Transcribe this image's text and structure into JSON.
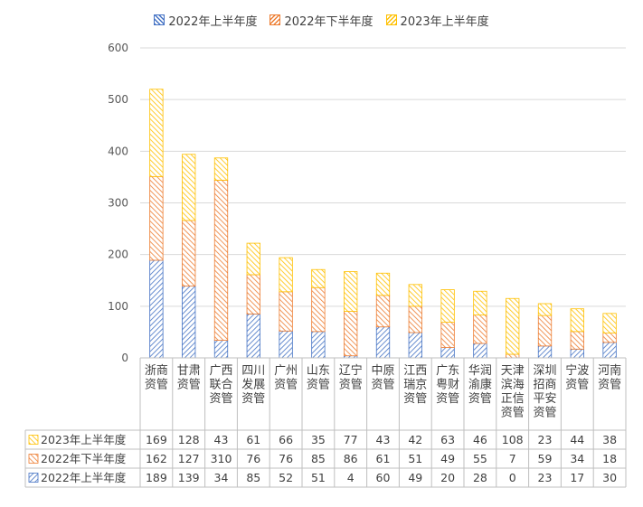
{
  "chart_data": {
    "type": "bar",
    "stacked": true,
    "title": "",
    "xlabel": "",
    "ylabel": "",
    "ylim": [
      0,
      600
    ],
    "yticks": [
      0,
      100,
      200,
      300,
      400,
      500,
      600
    ],
    "grid": true,
    "legend_position": "top",
    "categories": [
      "浙商资管",
      "甘肃资管",
      "广西联合资管",
      "四川发展资管",
      "广州资管",
      "山东资管",
      "辽宁资管",
      "中原资管",
      "江西瑞京资管",
      "广东粤财资管",
      "华润渝康资管",
      "天津滨海正信资管",
      "深圳招商平安资管",
      "宁波资管",
      "河南资管"
    ],
    "category_lines": [
      [
        "浙商",
        "资管"
      ],
      [
        "甘肃",
        "资管"
      ],
      [
        "广西",
        "联合",
        "资管"
      ],
      [
        "四川",
        "发展",
        "资管"
      ],
      [
        "广州",
        "资管"
      ],
      [
        "山东",
        "资管"
      ],
      [
        "辽宁",
        "资管"
      ],
      [
        "中原",
        "资管"
      ],
      [
        "江西",
        "瑞京",
        "资管"
      ],
      [
        "广东",
        "粤财",
        "资管"
      ],
      [
        "华润",
        "渝康",
        "资管"
      ],
      [
        "天津",
        "滨海",
        "正信",
        "资管"
      ],
      [
        "深圳",
        "招商",
        "平安",
        "资管"
      ],
      [
        "宁波",
        "资管"
      ],
      [
        "河南",
        "资管"
      ]
    ],
    "series": [
      {
        "name": "2022年上半年度",
        "color": "#4472C4",
        "values": [
          189,
          139,
          34,
          85,
          52,
          51,
          4,
          60,
          49,
          20,
          28,
          0,
          23,
          17,
          30
        ]
      },
      {
        "name": "2022年下半年度",
        "color": "#ED7D31",
        "values": [
          162,
          127,
          310,
          76,
          76,
          85,
          86,
          61,
          51,
          49,
          55,
          7,
          59,
          34,
          18
        ]
      },
      {
        "name": "2023年上半年度",
        "color": "#FFC000",
        "values": [
          169,
          128,
          43,
          61,
          66,
          35,
          77,
          43,
          42,
          63,
          46,
          108,
          23,
          44,
          38
        ]
      }
    ],
    "table_row_order": [
      2,
      1,
      0
    ]
  }
}
